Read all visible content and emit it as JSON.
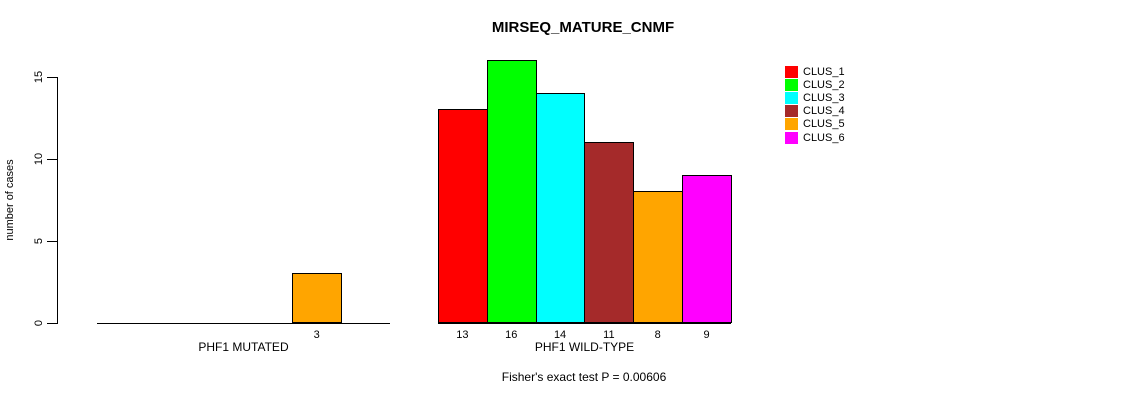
{
  "chart_data": {
    "type": "bar",
    "title": "MIRSEQ_MATURE_CNMF",
    "xlabel": "",
    "ylabel": "number of cases",
    "ylim": [
      0,
      16
    ],
    "yticks": [
      0,
      5,
      10,
      15
    ],
    "grid": false,
    "legend_position": "right",
    "legend": [
      {
        "label": "CLUS_1",
        "color": "#FF0000"
      },
      {
        "label": "CLUS_2",
        "color": "#00FF00"
      },
      {
        "label": "CLUS_3",
        "color": "#00FFFF"
      },
      {
        "label": "CLUS_4",
        "color": "#A52A2A"
      },
      {
        "label": "CLUS_5",
        "color": "#FFA500"
      },
      {
        "label": "CLUS_6",
        "color": "#FF00FF"
      }
    ],
    "groups": [
      {
        "label": "PHF1 MUTATED",
        "values": [
          0,
          0,
          0,
          0,
          3,
          0
        ]
      },
      {
        "label": "PHF1 WILD-TYPE",
        "values": [
          13,
          16,
          14,
          11,
          8,
          9
        ]
      }
    ],
    "bar_value_labels_shown": true,
    "annotation": "Fisher's exact test P = 0.00606"
  }
}
